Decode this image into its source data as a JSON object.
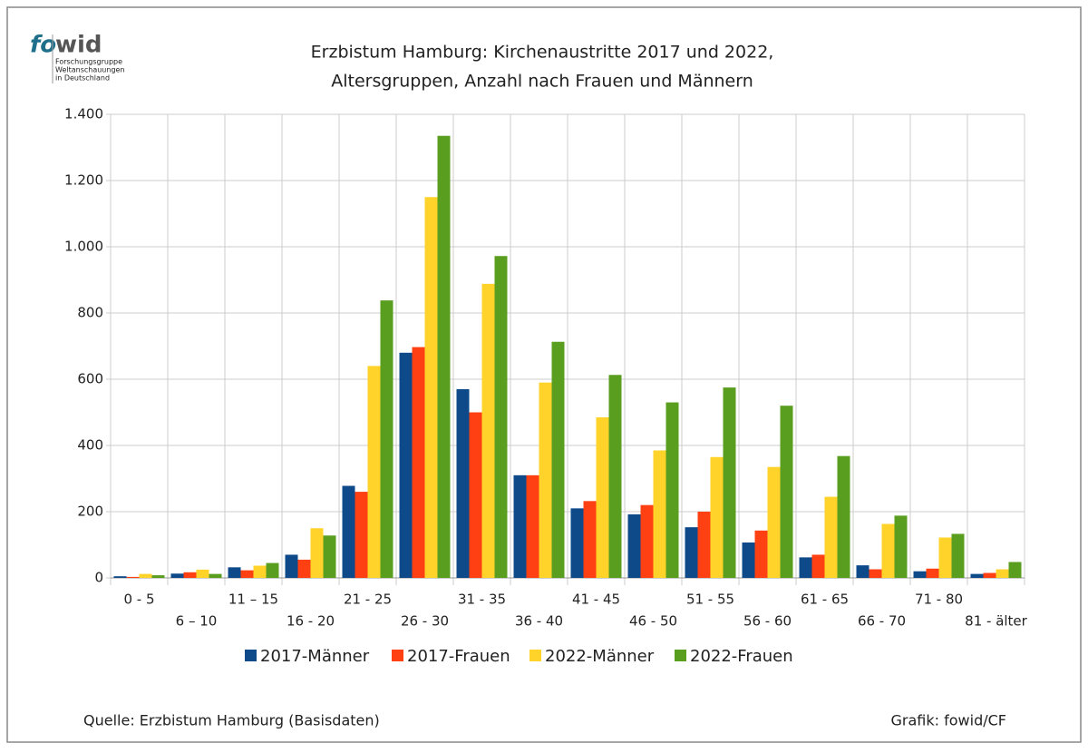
{
  "logo": {
    "part1": "fo",
    "part2": "wid",
    "lines": [
      "Forschungsgruppe",
      "Weltanschauungen",
      "in Deutschland"
    ]
  },
  "chart_data": {
    "type": "bar",
    "title": [
      "Erzbistum Hamburg: Kirchenaustritte 2017 und 2022,",
      "Altersgruppen, Anzahl nach Frauen und Männern"
    ],
    "categories": [
      "0 - 5",
      "6 – 10",
      "11 – 15",
      "16 - 20",
      "21 - 25",
      "26 - 30",
      "31 - 35",
      "36 - 40",
      "41 - 45",
      "46 - 50",
      "51 - 55",
      "56 - 60",
      "61 - 65",
      "66 - 70",
      "71 - 80",
      "81 - älter"
    ],
    "series": [
      {
        "name": "2017-Männer",
        "color": "#0e4a8a",
        "values": [
          5,
          13,
          32,
          70,
          278,
          680,
          570,
          310,
          210,
          192,
          153,
          107,
          62,
          38,
          20,
          12
        ]
      },
      {
        "name": "2017-Frauen",
        "color": "#ff4013",
        "values": [
          3,
          17,
          23,
          55,
          260,
          697,
          500,
          310,
          232,
          220,
          200,
          143,
          70,
          26,
          28,
          15
        ]
      },
      {
        "name": "2022-Männer",
        "color": "#ffd32a",
        "values": [
          12,
          25,
          37,
          150,
          640,
          1150,
          888,
          590,
          485,
          385,
          365,
          335,
          245,
          163,
          122,
          26
        ]
      },
      {
        "name": "2022-Frauen",
        "color": "#5a9e1f",
        "values": [
          8,
          12,
          45,
          128,
          838,
          1335,
          972,
          713,
          613,
          530,
          575,
          520,
          368,
          188,
          133,
          48
        ]
      }
    ],
    "ylim": [
      0,
      1400
    ],
    "yticks": [
      0,
      200,
      400,
      600,
      800,
      {
        "value": 1000,
        "label": "1.000"
      },
      {
        "value": 1200,
        "label": "1.200"
      },
      {
        "value": 1400,
        "label": "1.400"
      }
    ],
    "grid": true,
    "legend": "bottom",
    "source": "Quelle: Erzbistum Hamburg (Basisdaten)",
    "credit": "Grafik: fowid/CF"
  }
}
